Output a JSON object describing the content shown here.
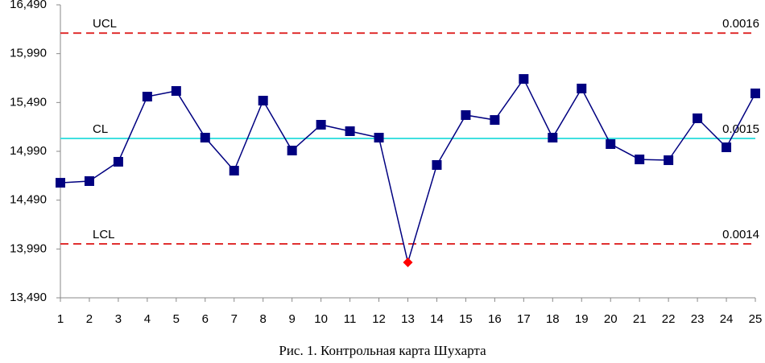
{
  "chart_data": {
    "type": "line",
    "caption": "Рис. 1. Контрольная карта Шухарта",
    "x": [
      1,
      2,
      3,
      4,
      5,
      6,
      7,
      8,
      9,
      10,
      11,
      12,
      13,
      14,
      15,
      16,
      17,
      18,
      19,
      20,
      21,
      22,
      23,
      24,
      25
    ],
    "xlim": [
      1,
      25
    ],
    "xticks": [
      1,
      2,
      3,
      4,
      5,
      6,
      7,
      8,
      9,
      10,
      11,
      12,
      13,
      14,
      15,
      16,
      17,
      18,
      19,
      20,
      21,
      22,
      23,
      24,
      25
    ],
    "series": [
      {
        "color": "#000080",
        "values": [
          14668,
          14685,
          14883,
          15550,
          15608,
          15130,
          14792,
          15509,
          14998,
          15262,
          15196,
          15130,
          13853,
          14850,
          15361,
          15311,
          15731,
          15130,
          15633,
          15064,
          14907,
          14899,
          15328,
          15031,
          15583
        ]
      }
    ],
    "out_of_control_color": "#ff0000",
    "ylim": [
      13490,
      16490
    ],
    "yticks": [
      {
        "value": 13490,
        "label": "13,490"
      },
      {
        "value": 13990,
        "label": "13,990"
      },
      {
        "value": 14490,
        "label": "14,490"
      },
      {
        "value": 14990,
        "label": "14,990"
      },
      {
        "value": 15490,
        "label": "15,490"
      },
      {
        "value": 15990,
        "label": "15,990"
      },
      {
        "value": 16490,
        "label": "16,490"
      }
    ],
    "reference_lines": [
      {
        "name": "UCL",
        "label": "0.0016",
        "value": 16201,
        "color": "#e03030",
        "dashed": true
      },
      {
        "name": "CL",
        "label": "0.0015",
        "value": 15122,
        "color": "#40e0e0",
        "dashed": false
      },
      {
        "name": "LCL",
        "label": "0.0014",
        "value": 14042,
        "color": "#e03030",
        "dashed": true
      }
    ]
  }
}
